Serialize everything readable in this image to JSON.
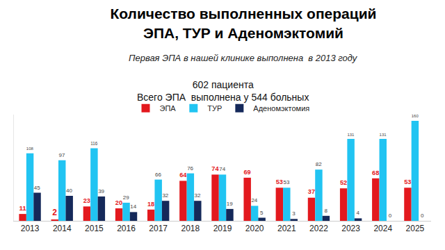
{
  "chart_data": {
    "type": "bar",
    "title": "Количество выполненных операций ЭПА, ТУР и Аденомэктомий",
    "subtitle": "Первая ЭПА в нашей клинике выполнена  в 2013 году",
    "annotations": [
      "602 пациента",
      "Всего ЭПА  выполнена у 544 больных"
    ],
    "categories": [
      "2013",
      "2014",
      "2015",
      "2016",
      "2017",
      "2018",
      "2019",
      "2020",
      "2021",
      "2022",
      "2023",
      "2024",
      "2025"
    ],
    "series": [
      {
        "name": "ЭПА",
        "color": "#e3191e",
        "values": [
          11,
          2,
          23,
          20,
          18,
          64,
          74,
          69,
          53,
          37,
          52,
          68,
          53
        ]
      },
      {
        "name": "ТУР",
        "color": "#21c4f2",
        "values": [
          108,
          97,
          116,
          29,
          66,
          76,
          74,
          24,
          53,
          82,
          131,
          131,
          160
        ]
      },
      {
        "name": "Аденомэктомия",
        "color": "#15295a",
        "values": [
          45,
          40,
          39,
          14,
          32,
          32,
          19,
          5,
          3,
          8,
          4,
          0,
          0
        ]
      }
    ],
    "ylim": [
      0,
      170
    ],
    "grid": false,
    "legend": "top",
    "data_labels": true,
    "tick_labels": "x"
  }
}
